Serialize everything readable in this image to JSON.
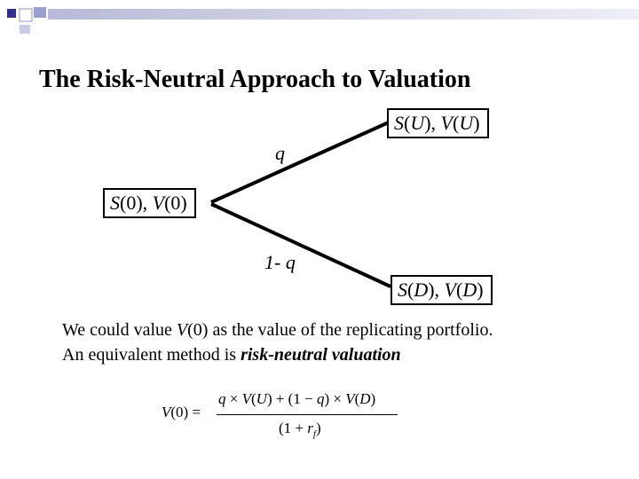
{
  "title": "The Risk-Neutral Approach to Valuation",
  "tree": {
    "root": {
      "s": "S",
      "s_arg": "(0), ",
      "v": "V",
      "v_arg": "(0)"
    },
    "up": {
      "s": "S",
      "s_arg": "(",
      "s_var": "U",
      "s_close": "), ",
      "v": "V",
      "v_arg": "(",
      "v_var": "U",
      "v_close": ")"
    },
    "down": {
      "s": "S",
      "s_arg": "(",
      "s_var": "D",
      "s_close": "), ",
      "v": "V",
      "v_arg": "(",
      "v_var": "D",
      "v_close": ")"
    },
    "up_prob": "q",
    "down_prob": "1- q"
  },
  "text": {
    "line1_a": "We could value ",
    "line1_v": "V",
    "line1_b": "(0) as the value of the replicating portfolio.",
    "line2_a": "An equivalent method is ",
    "line2_b": "risk-neutral valuation"
  },
  "formula": {
    "lhs_v": "V",
    "lhs_rest": "(0) =",
    "num_q": "q",
    "num_mid1": " × ",
    "num_v1": "V",
    "num_mid2": "(",
    "num_u": "U",
    "num_mid3": ") + (1 − ",
    "num_q2": "q",
    "num_mid4": ") × ",
    "num_v2": "V",
    "num_mid5": "(",
    "num_d": "D",
    "num_mid6": ")",
    "den_a": "(1 + ",
    "den_r": "r",
    "den_sub": "f",
    "den_b": ")"
  },
  "colors": {
    "deco_dark": "#2e3192",
    "deco_light": "#b8bad8"
  }
}
